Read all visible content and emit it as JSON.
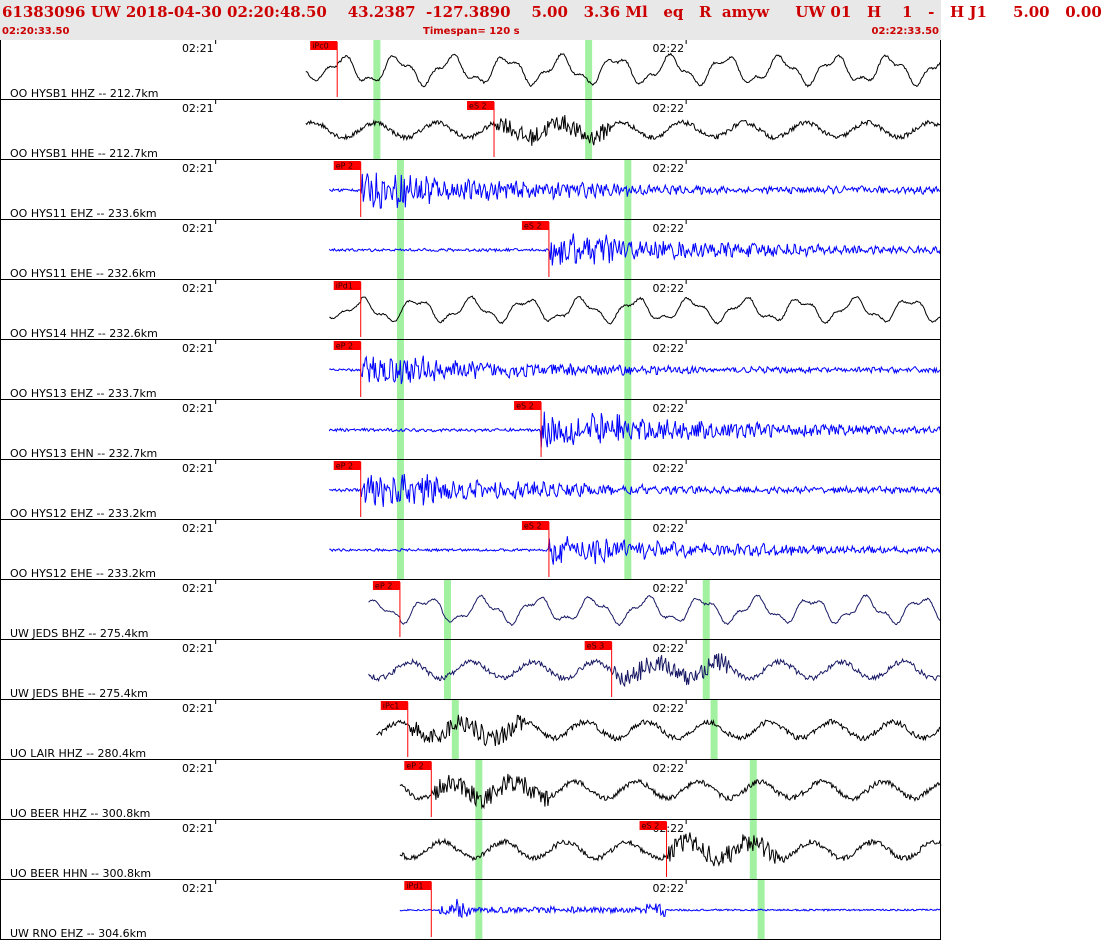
{
  "header": {
    "title": "61383096 UW 2018-04-30 02:20:48.50    43.2387  -127.3890    5.00   3.36 Ml   eq   R  amyw     UW 01   H    1   -   H J1     5.00   0.00",
    "start_time": "02:20:33.50",
    "timespan": "Timespan= 120 s",
    "end_time": "02:22:33.50"
  },
  "chart_data": {
    "type": "line",
    "title": "61383096 UW 2018-04-30 02:20:48.50 43.2387 -127.3890 5.00 3.36 Ml eq R amyw UW 01 H 1 - H J1 5.00 0.00",
    "x_range": [
      "02:20:33.50",
      "02:22:33.50"
    ],
    "timespan_s": 120,
    "tick_labels": [
      "02:21",
      "02:22"
    ],
    "grid": false,
    "colors": {
      "blue": "#0000ff",
      "black": "#000000",
      "navy": "#1a1a66",
      "pick": "#ff0000",
      "window": "#90ee90"
    },
    "traces": [
      {
        "label": "OO HYSB1 HHZ -- 212.7km",
        "color": "#000000",
        "start_s": 39,
        "pick": "iPc0",
        "pick_s": 43,
        "windows_s": [
          48,
          75
        ],
        "style": "lp",
        "amp": 0.6
      },
      {
        "label": "OO HYSB1 HHE -- 212.7km",
        "color": "#000000",
        "start_s": 39,
        "pick": "eS 2",
        "pick_s": 63,
        "windows_s": [
          48,
          75
        ],
        "style": "mix",
        "amp": 0.5
      },
      {
        "label": "OO HYS11 EHZ -- 233.6km",
        "color": "#0000ff",
        "start_s": 42,
        "pick": "eP 2",
        "pick_s": 46,
        "windows_s": [
          51,
          80
        ],
        "style": "hf",
        "amp": 0.5
      },
      {
        "label": "OO HYS11 EHE -- 232.6km",
        "color": "#0000ff",
        "start_s": 42,
        "pick": "eS 2",
        "pick_s": 70,
        "windows_s": [
          51,
          80
        ],
        "style": "hf",
        "amp": 0.45
      },
      {
        "label": "OO HYS14 HHZ -- 232.6km",
        "color": "#000000",
        "start_s": 42,
        "pick": "iPd1",
        "pick_s": 46,
        "windows_s": [
          51,
          80
        ],
        "style": "lp",
        "amp": 0.5
      },
      {
        "label": "OO HYS13 EHZ -- 233.7km",
        "color": "#0000ff",
        "start_s": 42,
        "pick": "eP 2",
        "pick_s": 46,
        "windows_s": [
          51,
          80
        ],
        "style": "hf",
        "amp": 0.4
      },
      {
        "label": "OO HYS13 EHN -- 232.7km",
        "color": "#0000ff",
        "start_s": 42,
        "pick": "eS 2",
        "pick_s": 69,
        "windows_s": [
          51,
          80
        ],
        "style": "hf",
        "amp": 0.5
      },
      {
        "label": "OO HYS12 EHZ -- 233.2km",
        "color": "#0000ff",
        "start_s": 42,
        "pick": "eP 2",
        "pick_s": 46,
        "windows_s": [
          51,
          80
        ],
        "style": "hf",
        "amp": 0.45
      },
      {
        "label": "OO HYS12 EHE -- 233.2km",
        "color": "#0000ff",
        "start_s": 42,
        "pick": "eS 2",
        "pick_s": 70,
        "windows_s": [
          51,
          80
        ],
        "style": "hf",
        "amp": 0.4
      },
      {
        "label": "UW JEDS BHZ -- 275.4km",
        "color": "#1a1a66",
        "start_s": 47,
        "pick": "eP 2",
        "pick_s": 51,
        "windows_s": [
          57,
          90
        ],
        "style": "lp",
        "amp": 0.55
      },
      {
        "label": "UW JEDS BHE -- 275.4km",
        "color": "#1a1a66",
        "start_s": 47,
        "pick": "eS 3",
        "pick_s": 78,
        "windows_s": [
          57,
          90
        ],
        "style": "mix",
        "amp": 0.55
      },
      {
        "label": "UO LAIR HHZ -- 280.4km",
        "color": "#000000",
        "start_s": 48,
        "pick": "iPc1",
        "pick_s": 52,
        "windows_s": [
          58,
          91
        ],
        "style": "mix",
        "amp": 0.55
      },
      {
        "label": "UO BEER HHZ -- 300.8km",
        "color": "#000000",
        "start_s": 51,
        "pick": "eP 2",
        "pick_s": 55,
        "windows_s": [
          61,
          96
        ],
        "style": "mix",
        "amp": 0.55
      },
      {
        "label": "UO BEER HHN -- 300.8km",
        "color": "#000000",
        "start_s": 51,
        "pick": "eS 2",
        "pick_s": 85,
        "windows_s": [
          61,
          96
        ],
        "style": "mix",
        "amp": 0.55
      },
      {
        "label": "UW RNO EHZ -- 304.6km",
        "color": "#0000ff",
        "start_s": 51,
        "pick": "iPd1",
        "pick_s": 55,
        "windows_s": [
          61,
          97
        ],
        "style": "burst",
        "amp": 0.55
      }
    ]
  }
}
